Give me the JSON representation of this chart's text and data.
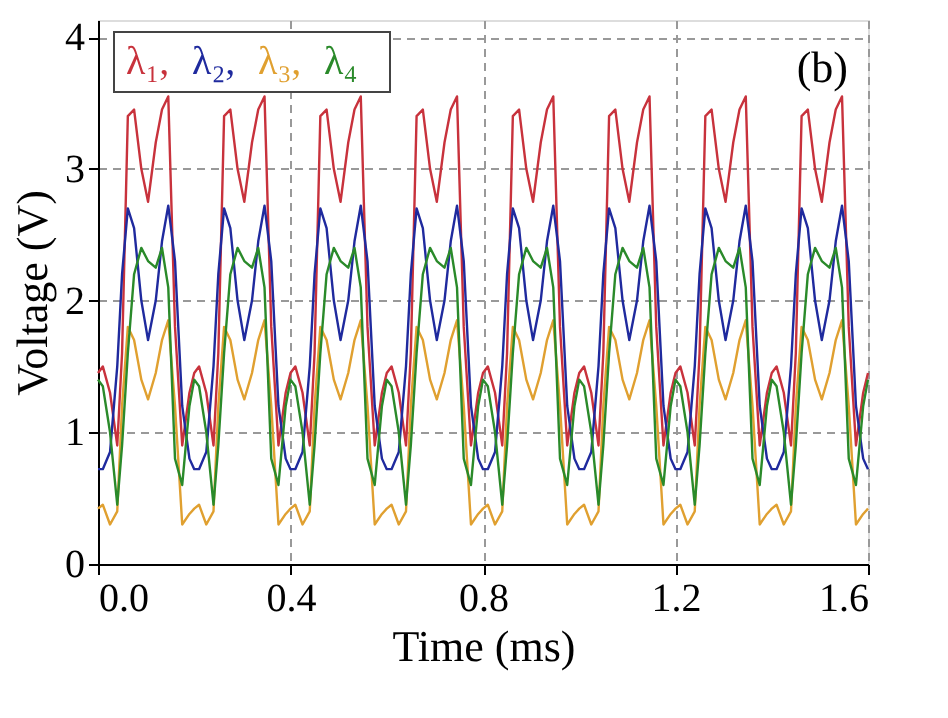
{
  "chart_data": {
    "type": "line",
    "xlabel": "Time (ms)",
    "ylabel": "Voltage (V)",
    "x": [
      0,
      0.01,
      0.025,
      0.04,
      0.05,
      0.062,
      0.075,
      0.09,
      0.104,
      0.12,
      0.133,
      0.146,
      0.16,
      0.175,
      0.19,
      0.2,
      0.21,
      0.225,
      0.24,
      0.25,
      0.262,
      0.275,
      0.29,
      0.304,
      0.32,
      0.333,
      0.346,
      0.36,
      0.375,
      0.39,
      0.4,
      0.41,
      0.425,
      0.44,
      0.45,
      0.462,
      0.475,
      0.49,
      0.504,
      0.52,
      0.533,
      0.546,
      0.56,
      0.575,
      0.59,
      0.6,
      0.61,
      0.625,
      0.64,
      0.65,
      0.662,
      0.675,
      0.69,
      0.704,
      0.72,
      0.733,
      0.746,
      0.76,
      0.775,
      0.79,
      0.8,
      0.81,
      0.825,
      0.84,
      0.85,
      0.862,
      0.875,
      0.89,
      0.904,
      0.92,
      0.933,
      0.946,
      0.96,
      0.975,
      0.99,
      1.0,
      1.01,
      1.025,
      1.04,
      1.05,
      1.062,
      1.075,
      1.09,
      1.104,
      1.12,
      1.133,
      1.146,
      1.16,
      1.175,
      1.19,
      1.2,
      1.21,
      1.225,
      1.24,
      1.25,
      1.262,
      1.275,
      1.29,
      1.304,
      1.32,
      1.333,
      1.346,
      1.36,
      1.375,
      1.39,
      1.4,
      1.41,
      1.425,
      1.44,
      1.45,
      1.462,
      1.475,
      1.49,
      1.504,
      1.52,
      1.533,
      1.546,
      1.56,
      1.575,
      1.59,
      1.6
    ],
    "series": [
      {
        "name": "λ₁,",
        "color": "#c8323c",
        "values": [
          1.45,
          1.5,
          1.3,
          0.9,
          1.6,
          3.4,
          3.45,
          3.0,
          2.75,
          3.2,
          3.45,
          3.55,
          1.8,
          0.9,
          1.3,
          1.45,
          1.5,
          1.3,
          0.9,
          1.6,
          3.4,
          3.45,
          3.0,
          2.75,
          3.2,
          3.45,
          3.55,
          1.8,
          0.9,
          1.3,
          1.45,
          1.5,
          1.3,
          0.9,
          1.6,
          3.4,
          3.45,
          3.0,
          2.75,
          3.2,
          3.45,
          3.55,
          1.8,
          0.9,
          1.3,
          1.45,
          1.5,
          1.3,
          0.9,
          1.6,
          3.4,
          3.45,
          3.0,
          2.75,
          3.2,
          3.45,
          3.55,
          1.8,
          0.9,
          1.3,
          1.45,
          1.5,
          1.3,
          0.9,
          1.6,
          3.4,
          3.45,
          3.0,
          2.75,
          3.2,
          3.45,
          3.55,
          1.8,
          0.9,
          1.3,
          1.45,
          1.5,
          1.3,
          0.9,
          1.6,
          3.4,
          3.45,
          3.0,
          2.75,
          3.2,
          3.45,
          3.55,
          1.8,
          0.9,
          1.3,
          1.45,
          1.5,
          1.3,
          0.9,
          1.6,
          3.4,
          3.45,
          3.0,
          2.75,
          3.2,
          3.45,
          3.55,
          1.8,
          0.9,
          1.3,
          1.45,
          1.5,
          1.3,
          0.9,
          1.6,
          3.4,
          3.45,
          3.0,
          2.75,
          3.2,
          3.45,
          3.55,
          1.8,
          0.9,
          1.3,
          1.45
        ]
      },
      {
        "name": "λ₂,",
        "color": "#1f2a9e",
        "values": [
          0.72,
          0.72,
          0.85,
          1.5,
          2.2,
          2.7,
          2.55,
          2.0,
          1.7,
          2.0,
          2.45,
          2.72,
          2.3,
          1.2,
          0.8,
          0.72,
          0.72,
          0.85,
          1.5,
          2.2,
          2.7,
          2.55,
          2.0,
          1.7,
          2.0,
          2.45,
          2.72,
          2.3,
          1.2,
          0.8,
          0.72,
          0.72,
          0.85,
          1.5,
          2.2,
          2.7,
          2.55,
          2.0,
          1.7,
          2.0,
          2.45,
          2.72,
          2.3,
          1.2,
          0.8,
          0.72,
          0.72,
          0.85,
          1.5,
          2.2,
          2.7,
          2.55,
          2.0,
          1.7,
          2.0,
          2.45,
          2.72,
          2.3,
          1.2,
          0.8,
          0.72,
          0.72,
          0.85,
          1.5,
          2.2,
          2.7,
          2.55,
          2.0,
          1.7,
          2.0,
          2.45,
          2.72,
          2.3,
          1.2,
          0.8,
          0.72,
          0.72,
          0.85,
          1.5,
          2.2,
          2.7,
          2.55,
          2.0,
          1.7,
          2.0,
          2.45,
          2.72,
          2.3,
          1.2,
          0.8,
          0.72,
          0.72,
          0.85,
          1.5,
          2.2,
          2.7,
          2.55,
          2.0,
          1.7,
          2.0,
          2.45,
          2.72,
          2.3,
          1.2,
          0.8,
          0.72,
          0.72,
          0.85,
          1.5,
          2.2,
          2.7,
          2.55,
          2.0,
          1.7,
          2.0,
          2.45,
          2.72,
          2.3,
          1.2,
          0.8,
          0.72
        ]
      },
      {
        "name": "λ₃,",
        "color": "#e0a030",
        "values": [
          0.42,
          0.45,
          0.3,
          0.4,
          1.2,
          1.8,
          1.7,
          1.4,
          1.25,
          1.45,
          1.7,
          1.85,
          1.2,
          0.3,
          0.38,
          0.42,
          0.45,
          0.3,
          0.4,
          1.2,
          1.8,
          1.7,
          1.4,
          1.25,
          1.45,
          1.7,
          1.85,
          1.2,
          0.3,
          0.38,
          0.42,
          0.45,
          0.3,
          0.4,
          1.2,
          1.8,
          1.7,
          1.4,
          1.25,
          1.45,
          1.7,
          1.85,
          1.2,
          0.3,
          0.38,
          0.42,
          0.45,
          0.3,
          0.4,
          1.2,
          1.8,
          1.7,
          1.4,
          1.25,
          1.45,
          1.7,
          1.85,
          1.2,
          0.3,
          0.38,
          0.42,
          0.45,
          0.3,
          0.4,
          1.2,
          1.8,
          1.7,
          1.4,
          1.25,
          1.45,
          1.7,
          1.85,
          1.2,
          0.3,
          0.38,
          0.42,
          0.45,
          0.3,
          0.4,
          1.2,
          1.8,
          1.7,
          1.4,
          1.25,
          1.45,
          1.7,
          1.85,
          1.2,
          0.3,
          0.38,
          0.42,
          0.45,
          0.3,
          0.4,
          1.2,
          1.8,
          1.7,
          1.4,
          1.25,
          1.45,
          1.7,
          1.85,
          1.2,
          0.3,
          0.38,
          0.42,
          0.45,
          0.3,
          0.4,
          1.2,
          1.8,
          1.7,
          1.4,
          1.25,
          1.45,
          1.7,
          1.85,
          1.2,
          0.3,
          0.38,
          0.42
        ]
      },
      {
        "name": "λ₄",
        "color": "#2a8a2a",
        "values": [
          1.4,
          1.35,
          1.0,
          0.45,
          0.9,
          1.6,
          2.2,
          2.4,
          2.3,
          2.25,
          2.4,
          2.1,
          0.8,
          0.6,
          1.2,
          1.4,
          1.35,
          1.0,
          0.45,
          0.9,
          1.6,
          2.2,
          2.4,
          2.3,
          2.25,
          2.4,
          2.1,
          0.8,
          0.6,
          1.2,
          1.4,
          1.35,
          1.0,
          0.45,
          0.9,
          1.6,
          2.2,
          2.4,
          2.3,
          2.25,
          2.4,
          2.1,
          0.8,
          0.6,
          1.2,
          1.4,
          1.35,
          1.0,
          0.45,
          0.9,
          1.6,
          2.2,
          2.4,
          2.3,
          2.25,
          2.4,
          2.1,
          0.8,
          0.6,
          1.2,
          1.4,
          1.35,
          1.0,
          0.45,
          0.9,
          1.6,
          2.2,
          2.4,
          2.3,
          2.25,
          2.4,
          2.1,
          0.8,
          0.6,
          1.2,
          1.4,
          1.35,
          1.0,
          0.45,
          0.9,
          1.6,
          2.2,
          2.4,
          2.3,
          2.25,
          2.4,
          2.1,
          0.8,
          0.6,
          1.2,
          1.4,
          1.35,
          1.0,
          0.45,
          0.9,
          1.6,
          2.2,
          2.4,
          2.3,
          2.25,
          2.4,
          2.1,
          0.8,
          0.6,
          1.2,
          1.4,
          1.35,
          1.0,
          0.45,
          0.9,
          1.6,
          2.2,
          2.4,
          2.3,
          2.25,
          2.4,
          2.1,
          0.8,
          0.6,
          1.2,
          1.4
        ]
      }
    ],
    "xlim": [
      0,
      1.6
    ],
    "xticks": [
      {
        "value": 0,
        "label": "0.0"
      },
      0.4,
      0.8,
      1.2,
      1.6
    ],
    "ylim": [
      0,
      4.13
    ],
    "yticks": [
      0,
      1,
      2,
      3,
      4
    ],
    "grid": true,
    "legend": "top left",
    "marker": "none",
    "line_style": "solid",
    "annotations": [
      "(b)"
    ]
  }
}
